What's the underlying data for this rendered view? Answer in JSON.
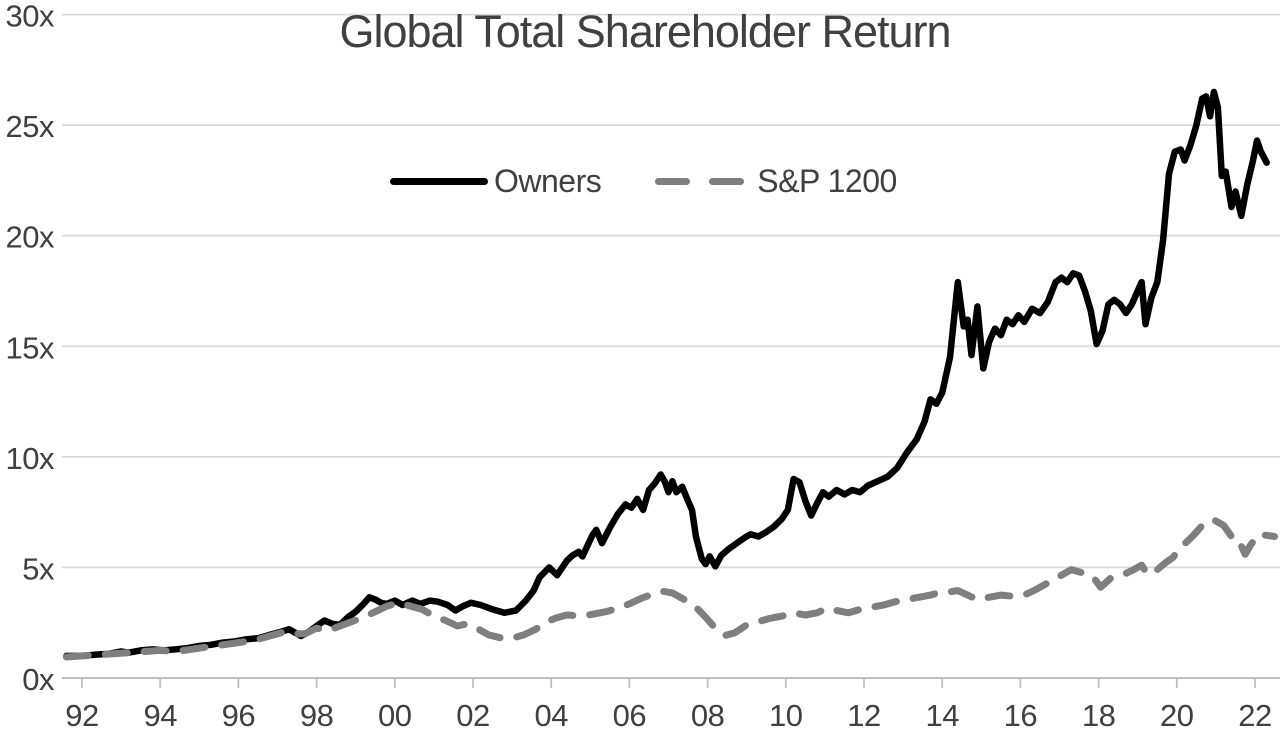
{
  "chart_data": {
    "type": "line",
    "title": "Global Total Shareholder Return",
    "x_axis": {
      "tick_labels": [
        "92",
        "94",
        "96",
        "98",
        "00",
        "02",
        "04",
        "06",
        "08",
        "10",
        "12",
        "14",
        "16",
        "18",
        "20",
        "22"
      ],
      "start_year": 1992,
      "end_year": 2022,
      "tick_interval_years": 2
    },
    "y_axis": {
      "tick_labels": [
        "0x",
        "5x",
        "10x",
        "15x",
        "20x",
        "25x",
        "30x"
      ],
      "min": 0,
      "max": 30,
      "step": 5
    },
    "grid": "horizontal-only",
    "legend": {
      "position": "top-center",
      "entries": [
        "Owners",
        "S&P 1200"
      ]
    },
    "colors": {
      "text": "#404040",
      "gridline": "#d9d9d9",
      "axis_line": "#bfbfbf",
      "background": "#ffffff"
    },
    "series": [
      {
        "name": "Owners",
        "style": "solid",
        "color": "#000000",
        "line_width": 6.5,
        "points": [
          [
            1991.6,
            1.0
          ],
          [
            1992.0,
            1.0
          ],
          [
            1992.3,
            1.05
          ],
          [
            1992.7,
            1.1
          ],
          [
            1993.0,
            1.2
          ],
          [
            1993.2,
            1.15
          ],
          [
            1993.5,
            1.25
          ],
          [
            1993.8,
            1.3
          ],
          [
            1994.1,
            1.25
          ],
          [
            1994.4,
            1.3
          ],
          [
            1994.7,
            1.35
          ],
          [
            1995.0,
            1.45
          ],
          [
            1995.3,
            1.5
          ],
          [
            1995.6,
            1.6
          ],
          [
            1995.9,
            1.65
          ],
          [
            1996.2,
            1.75
          ],
          [
            1996.5,
            1.8
          ],
          [
            1996.8,
            1.95
          ],
          [
            1997.1,
            2.1
          ],
          [
            1997.3,
            2.2
          ],
          [
            1997.45,
            2.05
          ],
          [
            1997.6,
            1.9
          ],
          [
            1997.8,
            2.1
          ],
          [
            1998.0,
            2.35
          ],
          [
            1998.2,
            2.6
          ],
          [
            1998.4,
            2.45
          ],
          [
            1998.6,
            2.4
          ],
          [
            1998.8,
            2.75
          ],
          [
            1999.0,
            3.0
          ],
          [
            1999.2,
            3.35
          ],
          [
            1999.35,
            3.65
          ],
          [
            1999.5,
            3.55
          ],
          [
            1999.65,
            3.4
          ],
          [
            1999.8,
            3.35
          ],
          [
            2000.0,
            3.5
          ],
          [
            2000.2,
            3.3
          ],
          [
            2000.45,
            3.5
          ],
          [
            2000.65,
            3.35
          ],
          [
            2000.9,
            3.5
          ],
          [
            2001.1,
            3.45
          ],
          [
            2001.35,
            3.3
          ],
          [
            2001.55,
            3.05
          ],
          [
            2001.75,
            3.25
          ],
          [
            2001.95,
            3.4
          ],
          [
            2002.2,
            3.3
          ],
          [
            2002.5,
            3.1
          ],
          [
            2002.8,
            2.95
          ],
          [
            2003.1,
            3.05
          ],
          [
            2003.35,
            3.5
          ],
          [
            2003.55,
            3.95
          ],
          [
            2003.7,
            4.55
          ],
          [
            2003.95,
            5.0
          ],
          [
            2004.15,
            4.65
          ],
          [
            2004.4,
            5.3
          ],
          [
            2004.55,
            5.55
          ],
          [
            2004.7,
            5.7
          ],
          [
            2004.8,
            5.5
          ],
          [
            2005.05,
            6.45
          ],
          [
            2005.15,
            6.7
          ],
          [
            2005.3,
            6.1
          ],
          [
            2005.5,
            6.8
          ],
          [
            2005.7,
            7.4
          ],
          [
            2005.9,
            7.85
          ],
          [
            2006.05,
            7.7
          ],
          [
            2006.2,
            8.1
          ],
          [
            2006.35,
            7.6
          ],
          [
            2006.5,
            8.5
          ],
          [
            2006.65,
            8.8
          ],
          [
            2006.8,
            9.2
          ],
          [
            2006.9,
            8.9
          ],
          [
            2007.0,
            8.4
          ],
          [
            2007.1,
            8.9
          ],
          [
            2007.2,
            8.4
          ],
          [
            2007.35,
            8.65
          ],
          [
            2007.5,
            8.0
          ],
          [
            2007.6,
            7.6
          ],
          [
            2007.7,
            6.4
          ],
          [
            2007.85,
            5.4
          ],
          [
            2007.95,
            5.15
          ],
          [
            2008.05,
            5.5
          ],
          [
            2008.2,
            5.05
          ],
          [
            2008.35,
            5.55
          ],
          [
            2008.55,
            5.85
          ],
          [
            2008.75,
            6.1
          ],
          [
            2008.95,
            6.35
          ],
          [
            2009.1,
            6.5
          ],
          [
            2009.3,
            6.4
          ],
          [
            2009.5,
            6.6
          ],
          [
            2009.7,
            6.85
          ],
          [
            2009.9,
            7.2
          ],
          [
            2010.05,
            7.6
          ],
          [
            2010.2,
            9.0
          ],
          [
            2010.35,
            8.85
          ],
          [
            2010.5,
            8.0
          ],
          [
            2010.65,
            7.35
          ],
          [
            2010.8,
            7.9
          ],
          [
            2010.95,
            8.4
          ],
          [
            2011.1,
            8.2
          ],
          [
            2011.3,
            8.5
          ],
          [
            2011.5,
            8.3
          ],
          [
            2011.7,
            8.5
          ],
          [
            2011.9,
            8.4
          ],
          [
            2012.1,
            8.7
          ],
          [
            2012.35,
            8.9
          ],
          [
            2012.6,
            9.1
          ],
          [
            2012.85,
            9.5
          ],
          [
            2013.1,
            10.2
          ],
          [
            2013.35,
            10.8
          ],
          [
            2013.55,
            11.6
          ],
          [
            2013.7,
            12.6
          ],
          [
            2013.85,
            12.4
          ],
          [
            2014.0,
            12.9
          ],
          [
            2014.2,
            14.5
          ],
          [
            2014.4,
            17.9
          ],
          [
            2014.55,
            15.9
          ],
          [
            2014.65,
            16.2
          ],
          [
            2014.75,
            14.6
          ],
          [
            2014.9,
            16.8
          ],
          [
            2015.05,
            14.0
          ],
          [
            2015.2,
            15.2
          ],
          [
            2015.35,
            15.8
          ],
          [
            2015.5,
            15.5
          ],
          [
            2015.65,
            16.2
          ],
          [
            2015.8,
            16.0
          ],
          [
            2015.95,
            16.4
          ],
          [
            2016.1,
            16.1
          ],
          [
            2016.3,
            16.7
          ],
          [
            2016.5,
            16.5
          ],
          [
            2016.7,
            17.0
          ],
          [
            2016.9,
            17.9
          ],
          [
            2017.05,
            18.1
          ],
          [
            2017.2,
            17.9
          ],
          [
            2017.35,
            18.3
          ],
          [
            2017.5,
            18.2
          ],
          [
            2017.65,
            17.5
          ],
          [
            2017.8,
            16.6
          ],
          [
            2017.95,
            15.1
          ],
          [
            2018.1,
            15.7
          ],
          [
            2018.25,
            16.9
          ],
          [
            2018.4,
            17.1
          ],
          [
            2018.55,
            16.9
          ],
          [
            2018.7,
            16.5
          ],
          [
            2018.85,
            16.9
          ],
          [
            2019.0,
            17.5
          ],
          [
            2019.1,
            17.9
          ],
          [
            2019.2,
            16.0
          ],
          [
            2019.35,
            17.2
          ],
          [
            2019.5,
            17.9
          ],
          [
            2019.65,
            19.8
          ],
          [
            2019.8,
            22.8
          ],
          [
            2019.95,
            23.8
          ],
          [
            2020.1,
            23.9
          ],
          [
            2020.2,
            23.4
          ],
          [
            2020.35,
            24.1
          ],
          [
            2020.5,
            25.0
          ],
          [
            2020.65,
            26.2
          ],
          [
            2020.75,
            26.3
          ],
          [
            2020.85,
            25.4
          ],
          [
            2020.95,
            26.5
          ],
          [
            2021.05,
            25.8
          ],
          [
            2021.15,
            22.7
          ],
          [
            2021.25,
            22.9
          ],
          [
            2021.4,
            21.3
          ],
          [
            2021.5,
            22.0
          ],
          [
            2021.65,
            20.9
          ],
          [
            2021.8,
            22.3
          ],
          [
            2021.95,
            23.4
          ],
          [
            2022.05,
            24.3
          ],
          [
            2022.15,
            23.8
          ],
          [
            2022.3,
            23.3
          ]
        ]
      },
      {
        "name": "S&P 1200",
        "style": "dashed",
        "color": "#7f7f7f",
        "line_width": 7,
        "points": [
          [
            1991.6,
            0.95
          ],
          [
            1992.0,
            1.0
          ],
          [
            1992.4,
            1.05
          ],
          [
            1992.8,
            1.1
          ],
          [
            1993.2,
            1.15
          ],
          [
            1993.6,
            1.2
          ],
          [
            1994.0,
            1.25
          ],
          [
            1994.4,
            1.2
          ],
          [
            1994.8,
            1.3
          ],
          [
            1995.2,
            1.4
          ],
          [
            1995.6,
            1.5
          ],
          [
            1996.0,
            1.6
          ],
          [
            1996.4,
            1.7
          ],
          [
            1996.8,
            1.9
          ],
          [
            1997.2,
            2.1
          ],
          [
            1997.45,
            2.0
          ],
          [
            1997.7,
            2.0
          ],
          [
            1998.0,
            2.25
          ],
          [
            1998.3,
            2.15
          ],
          [
            1998.6,
            2.35
          ],
          [
            1998.9,
            2.55
          ],
          [
            1999.2,
            2.75
          ],
          [
            1999.5,
            3.0
          ],
          [
            1999.8,
            3.25
          ],
          [
            2000.1,
            3.4
          ],
          [
            2000.4,
            3.25
          ],
          [
            2000.7,
            3.1
          ],
          [
            2001.0,
            2.8
          ],
          [
            2001.3,
            2.6
          ],
          [
            2001.6,
            2.35
          ],
          [
            2001.85,
            2.45
          ],
          [
            2002.1,
            2.25
          ],
          [
            2002.4,
            1.95
          ],
          [
            2002.7,
            1.82
          ],
          [
            2003.0,
            1.8
          ],
          [
            2003.3,
            1.95
          ],
          [
            2003.6,
            2.2
          ],
          [
            2003.85,
            2.5
          ],
          [
            2004.1,
            2.7
          ],
          [
            2004.4,
            2.85
          ],
          [
            2004.8,
            2.8
          ],
          [
            2005.1,
            2.9
          ],
          [
            2005.4,
            3.0
          ],
          [
            2005.7,
            3.15
          ],
          [
            2006.0,
            3.35
          ],
          [
            2006.3,
            3.6
          ],
          [
            2006.6,
            3.8
          ],
          [
            2006.85,
            3.92
          ],
          [
            2007.1,
            3.85
          ],
          [
            2007.45,
            3.5
          ],
          [
            2007.7,
            3.2
          ],
          [
            2007.95,
            2.75
          ],
          [
            2008.2,
            2.25
          ],
          [
            2008.45,
            1.92
          ],
          [
            2008.7,
            2.05
          ],
          [
            2009.0,
            2.4
          ],
          [
            2009.3,
            2.55
          ],
          [
            2009.6,
            2.7
          ],
          [
            2009.9,
            2.8
          ],
          [
            2010.2,
            2.95
          ],
          [
            2010.5,
            2.85
          ],
          [
            2010.8,
            2.95
          ],
          [
            2011.05,
            3.15
          ],
          [
            2011.3,
            3.05
          ],
          [
            2011.6,
            2.95
          ],
          [
            2011.9,
            3.1
          ],
          [
            2012.2,
            3.2
          ],
          [
            2012.5,
            3.3
          ],
          [
            2012.8,
            3.45
          ],
          [
            2013.1,
            3.55
          ],
          [
            2013.4,
            3.65
          ],
          [
            2013.7,
            3.75
          ],
          [
            2013.95,
            3.88
          ],
          [
            2014.2,
            3.9
          ],
          [
            2014.4,
            3.95
          ],
          [
            2014.65,
            3.75
          ],
          [
            2014.9,
            3.55
          ],
          [
            2015.2,
            3.65
          ],
          [
            2015.5,
            3.75
          ],
          [
            2015.8,
            3.7
          ],
          [
            2016.1,
            3.75
          ],
          [
            2016.4,
            4.0
          ],
          [
            2016.7,
            4.3
          ],
          [
            2017.0,
            4.6
          ],
          [
            2017.3,
            4.9
          ],
          [
            2017.6,
            4.75
          ],
          [
            2017.85,
            4.6
          ],
          [
            2018.05,
            4.1
          ],
          [
            2018.3,
            4.5
          ],
          [
            2018.6,
            4.65
          ],
          [
            2018.9,
            4.9
          ],
          [
            2019.1,
            5.1
          ],
          [
            2019.25,
            4.7
          ],
          [
            2019.5,
            4.9
          ],
          [
            2019.7,
            5.2
          ],
          [
            2019.9,
            5.45
          ],
          [
            2020.1,
            5.9
          ],
          [
            2020.4,
            6.4
          ],
          [
            2020.7,
            7.0
          ],
          [
            2020.95,
            7.15
          ],
          [
            2021.2,
            6.9
          ],
          [
            2021.4,
            6.4
          ],
          [
            2021.55,
            6.35
          ],
          [
            2021.75,
            5.6
          ],
          [
            2021.9,
            6.05
          ],
          [
            2022.1,
            6.5
          ],
          [
            2022.3,
            6.45
          ],
          [
            2022.5,
            6.4
          ]
        ]
      }
    ]
  }
}
